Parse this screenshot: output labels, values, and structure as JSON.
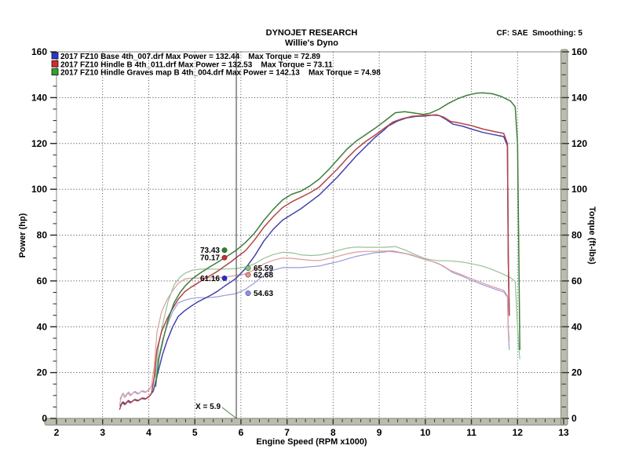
{
  "header": {
    "title": "DYNOJET RESEARCH",
    "subtitle": "Willie's Dyno",
    "correction": "CF: SAE  Smoothing: 5"
  },
  "legend": [
    {
      "label": "2017 FZ10 Base 4th_007.drf Max Power = 132.44    Max Torque = 72.89",
      "color": "#2a35d6"
    },
    {
      "label": "2017 FZ10 Hindle B 4th_011.drf Max Power = 132.53    Max Torque = 73.11",
      "color": "#d62a2a"
    },
    {
      "label": "2017 FZ10 Hindle Graves map B 4th_004.drf Max Power = 142.13    Max Torque = 74.98",
      "color": "#2aa52a"
    }
  ],
  "axes": {
    "x_label": "Engine Speed (RPM x1000)",
    "y_left_label": "Power (hp)",
    "y_right_label": "Torque (ft-lbs)",
    "x_ticks": [
      2,
      3,
      4,
      5,
      6,
      7,
      8,
      9,
      10,
      11,
      12,
      13
    ],
    "y_ticks": [
      0,
      20,
      40,
      60,
      80,
      100,
      120,
      140,
      160
    ]
  },
  "cursor": {
    "label": "X = 5.9",
    "x": 5.9,
    "power_readouts": [
      {
        "value": 73.43,
        "color": "#1e8c1e"
      },
      {
        "value": 70.17,
        "color": "#d62a2a"
      },
      {
        "value": 61.16,
        "color": "#2a2ad6"
      }
    ],
    "torque_readouts": [
      {
        "value": 65.59,
        "color": "#7cc87c"
      },
      {
        "value": 62.68,
        "color": "#f09090"
      },
      {
        "value": 54.63,
        "color": "#9090f0"
      }
    ]
  },
  "chart_data": {
    "type": "line",
    "title": "DYNOJET RESEARCH",
    "subtitle": "Willie's Dyno",
    "xlabel": "Engine Speed (RPM x1000)",
    "ylabel": "Power (hp)",
    "ylabel2": "Torque (ft-lbs)",
    "xlim": [
      2,
      13
    ],
    "ylim": [
      0,
      160
    ],
    "grid": true,
    "legend_position": "top-left",
    "cursor_x": 5.9,
    "runs": [
      {
        "file": "2017 FZ10 Base 4th_007.drf",
        "max_power": 132.44,
        "max_torque": 72.89
      },
      {
        "file": "2017 FZ10 Hindle B 4th_011.drf",
        "max_power": 132.53,
        "max_torque": 73.11
      },
      {
        "file": "2017 FZ10 Hindle Graves map B 4th_004.drf",
        "max_power": 142.13,
        "max_torque": 74.98
      }
    ],
    "series": [
      {
        "id": "base-torque",
        "name": "Base 4th_007 Torque (ft-lbs)",
        "role": "torque",
        "color": "#9a9adc",
        "x": [
          3.38,
          3.44,
          3.5,
          3.56,
          3.62,
          3.7,
          3.78,
          3.86,
          3.94,
          4.02,
          4.1,
          4.2,
          4.3,
          4.4,
          4.52,
          4.64,
          4.78,
          4.92,
          5.06,
          5.2,
          5.35,
          5.5,
          5.65,
          5.78,
          5.9,
          6.1,
          6.3,
          6.5,
          6.7,
          6.9,
          7.1,
          7.3,
          7.5,
          7.7,
          7.9,
          8.1,
          8.3,
          8.5,
          8.7,
          8.9,
          9.1,
          9.2,
          9.4,
          9.6,
          9.8,
          10.0,
          10.15,
          10.3,
          10.45,
          10.6,
          10.8,
          11.0,
          11.25,
          11.5,
          11.7,
          11.78,
          11.8,
          11.82
        ],
        "y": [
          8.5,
          11.0,
          9.5,
          11.5,
          10.2,
          11.8,
          10.8,
          12.1,
          11.5,
          12.8,
          15.4,
          25.0,
          34.2,
          40.6,
          46.5,
          50.4,
          51.6,
          52.3,
          52.7,
          52.7,
          52.8,
          53.1,
          53.7,
          54.1,
          54.5,
          56.4,
          59.2,
          62.6,
          64.7,
          65.8,
          65.8,
          65.8,
          66.2,
          66.5,
          67.5,
          68.4,
          69.6,
          70.7,
          71.5,
          72.3,
          72.6,
          72.9,
          72.5,
          71.8,
          70.6,
          69.3,
          68.5,
          67.4,
          65.6,
          63.6,
          62.1,
          60.3,
          58.3,
          56.5,
          55.2,
          53.0,
          38,
          30
        ]
      },
      {
        "id": "hindle-torque",
        "name": "Hindle B 4th_011 Torque (ft-lbs)",
        "role": "torque",
        "color": "#dc9c9c",
        "x": [
          3.37,
          3.42,
          3.48,
          3.54,
          3.6,
          3.68,
          3.76,
          3.84,
          3.92,
          4.0,
          4.06,
          4.12,
          4.18,
          4.28,
          4.4,
          4.52,
          4.64,
          4.78,
          4.92,
          5.06,
          5.2,
          5.35,
          5.5,
          5.65,
          5.78,
          5.9,
          6.1,
          6.3,
          6.5,
          6.7,
          6.9,
          7.1,
          7.3,
          7.5,
          7.7,
          7.9,
          8.1,
          8.3,
          8.5,
          8.7,
          8.9,
          9.1,
          9.3,
          9.5,
          9.7,
          9.9,
          10.1,
          10.25,
          10.4,
          10.55,
          10.75,
          11.0,
          11.25,
          11.5,
          11.7,
          11.78,
          11.8,
          11.82
        ],
        "y": [
          6.2,
          10.4,
          9.1,
          11.1,
          9.9,
          11.6,
          10.6,
          11.9,
          11.3,
          12.3,
          14.2,
          22.9,
          37.7,
          46.6,
          51.9,
          55.8,
          58.9,
          60.8,
          61.2,
          61.2,
          61.4,
          61.4,
          61.4,
          61.8,
          62.0,
          62.5,
          63.0,
          65.0,
          67.5,
          69.0,
          70.0,
          69.9,
          69.4,
          69.0,
          68.9,
          69.8,
          70.7,
          71.8,
          72.6,
          72.9,
          72.9,
          73.0,
          73.1,
          72.3,
          71.4,
          70.1,
          68.8,
          67.9,
          66.4,
          64.5,
          63.0,
          61.0,
          59.0,
          57.2,
          55.9,
          53.5,
          40,
          34
        ]
      },
      {
        "id": "graves-torque",
        "name": "Hindle Graves map B 4th_004 Torque (ft-lbs)",
        "role": "torque",
        "color": "#94c294",
        "x": [
          4.15,
          4.22,
          4.32,
          4.42,
          4.55,
          4.68,
          4.8,
          4.95,
          5.1,
          5.3,
          5.5,
          5.7,
          5.9,
          6.1,
          6.3,
          6.5,
          6.7,
          6.9,
          7.1,
          7.3,
          7.5,
          7.7,
          7.9,
          8.1,
          8.3,
          8.5,
          8.7,
          8.9,
          9.1,
          9.35,
          9.55,
          9.75,
          9.95,
          10.1,
          10.3,
          10.5,
          10.7,
          10.9,
          11.1,
          11.25,
          11.45,
          11.65,
          11.85,
          11.95,
          12.0,
          12.03,
          12.05
        ],
        "y": [
          17.7,
          32.4,
          42.6,
          51.1,
          58.3,
          61.7,
          63.5,
          64.7,
          65.1,
          65.2,
          65.1,
          65.2,
          65.4,
          66.1,
          67.5,
          69.9,
          71.5,
          72.5,
          72.3,
          71.4,
          71.1,
          71.3,
          72.1,
          73.3,
          74.3,
          74.8,
          74.7,
          74.7,
          74.7,
          75.0,
          73.6,
          71.8,
          70.1,
          69.3,
          68.8,
          68.8,
          68.5,
          67.9,
          67.1,
          66.4,
          65.0,
          63.3,
          61.4,
          59.8,
          40,
          30,
          26
        ]
      },
      {
        "id": "base-power",
        "name": "Base 4th_007 Power (hp)",
        "role": "power",
        "color": "#4343ae",
        "x": [
          3.38,
          3.44,
          3.5,
          3.56,
          3.62,
          3.7,
          3.78,
          3.86,
          3.94,
          4.02,
          4.1,
          4.2,
          4.3,
          4.4,
          4.52,
          4.64,
          4.78,
          4.92,
          5.06,
          5.2,
          5.35,
          5.5,
          5.65,
          5.78,
          5.9,
          6.1,
          6.3,
          6.5,
          6.7,
          6.9,
          7.1,
          7.3,
          7.5,
          7.7,
          7.9,
          8.1,
          8.3,
          8.5,
          8.7,
          8.9,
          9.1,
          9.2,
          9.4,
          9.6,
          9.8,
          10.0,
          10.15,
          10.3,
          10.45,
          10.6,
          10.8,
          11.0,
          11.25,
          11.5,
          11.7,
          11.78,
          11.8,
          11.82
        ],
        "y": [
          5.5,
          7.2,
          6.3,
          7.8,
          7.0,
          8.3,
          7.8,
          8.9,
          8.6,
          9.8,
          12,
          20,
          28,
          34,
          40,
          44.5,
          47,
          49,
          50.8,
          52.2,
          53.8,
          55.6,
          57.8,
          59.5,
          61.2,
          65.5,
          71,
          77.5,
          82.5,
          86.5,
          89,
          91.5,
          94.5,
          97.5,
          101.5,
          105.5,
          110,
          114.5,
          118.5,
          122.5,
          125.8,
          127.7,
          129.8,
          131.2,
          131.8,
          132.0,
          132.4,
          132.2,
          130.5,
          128.4,
          127.6,
          126.3,
          124.8,
          123.8,
          123.0,
          119,
          70,
          45
        ]
      },
      {
        "id": "hindle-power",
        "name": "Hindle B 4th_011 Power (hp)",
        "role": "power",
        "color": "#b34444",
        "x": [
          3.37,
          3.42,
          3.48,
          3.54,
          3.6,
          3.68,
          3.76,
          3.84,
          3.92,
          4.0,
          4.06,
          4.12,
          4.18,
          4.28,
          4.4,
          4.52,
          4.64,
          4.78,
          4.92,
          5.06,
          5.2,
          5.35,
          5.5,
          5.65,
          5.78,
          5.9,
          6.1,
          6.3,
          6.5,
          6.7,
          6.9,
          7.1,
          7.3,
          7.5,
          7.7,
          7.9,
          8.1,
          8.3,
          8.5,
          8.7,
          8.9,
          9.1,
          9.3,
          9.5,
          9.7,
          9.9,
          10.1,
          10.25,
          10.4,
          10.55,
          10.75,
          11.0,
          11.25,
          11.5,
          11.7,
          11.78,
          11.8,
          11.82
        ],
        "y": [
          4.0,
          6.8,
          6.0,
          7.5,
          6.8,
          8.1,
          7.6,
          8.7,
          8.4,
          9.4,
          11,
          18,
          30,
          38,
          43.5,
          48,
          52,
          55.3,
          57.3,
          59,
          60.8,
          62.5,
          64.3,
          66.5,
          68.3,
          70.2,
          73.2,
          78,
          83.5,
          88,
          92,
          94.5,
          96.5,
          98.5,
          101,
          105,
          109,
          113.5,
          117.5,
          120.8,
          123.5,
          126.5,
          129.4,
          130.8,
          131.8,
          132.1,
          132.3,
          132.5,
          131.5,
          129.6,
          128.9,
          127.8,
          126.3,
          125.2,
          124.4,
          120,
          70,
          45
        ]
      },
      {
        "id": "graves-power",
        "name": "Hindle Graves map B 4th_004 Power (hp)",
        "role": "power",
        "color": "#3d7e3d",
        "x": [
          4.15,
          4.22,
          4.32,
          4.42,
          4.55,
          4.68,
          4.8,
          4.95,
          5.1,
          5.3,
          5.5,
          5.7,
          5.9,
          6.1,
          6.3,
          6.5,
          6.7,
          6.9,
          7.1,
          7.3,
          7.5,
          7.7,
          7.9,
          8.1,
          8.3,
          8.5,
          8.7,
          8.9,
          9.1,
          9.35,
          9.55,
          9.75,
          9.95,
          10.1,
          10.3,
          10.5,
          10.7,
          10.9,
          11.1,
          11.25,
          11.45,
          11.65,
          11.85,
          11.95,
          12.0,
          12.03,
          12.05
        ],
        "y": [
          14,
          26,
          35,
          43,
          50.5,
          55,
          58,
          61,
          63.2,
          65.8,
          68.2,
          70.8,
          73.4,
          76.8,
          81,
          86.5,
          91.2,
          95.3,
          97.8,
          99.2,
          101.5,
          104.5,
          108.5,
          113,
          117.5,
          121,
          123.8,
          126.5,
          129.5,
          133.4,
          133.9,
          133.3,
          132.7,
          133.2,
          135,
          137.5,
          139.5,
          141,
          141.9,
          142.1,
          141.7,
          140.5,
          138.5,
          136,
          120,
          70,
          30
        ]
      }
    ]
  }
}
